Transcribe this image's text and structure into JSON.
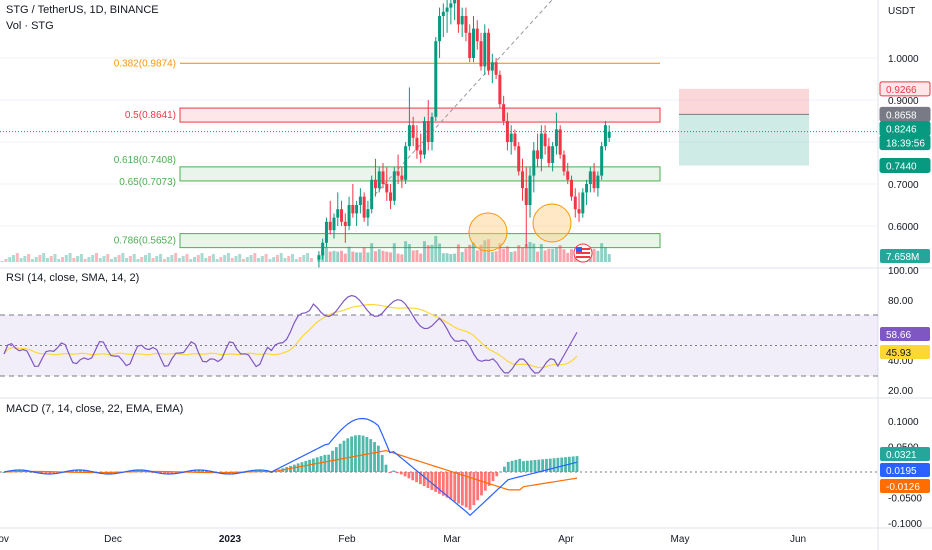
{
  "header": {
    "symbol": "STG / TetherUS, 1D, BINANCE",
    "vol_label": "Vol · STG"
  },
  "price_axis": {
    "currency": "USDT",
    "ticks": [
      "1.0000",
      "0.9000",
      "0.8000",
      "0.7000",
      "0.6000"
    ],
    "tick_values": [
      1.0,
      0.9,
      0.8,
      0.7,
      0.6
    ],
    "badges": [
      {
        "text": "0.9266",
        "color": "#f23645",
        "text_color": "#f23645",
        "fill": "#fde7e9",
        "value": 0.9266
      },
      {
        "text": "0.8658",
        "color": "#787b86",
        "text_color": "#ffffff",
        "fill": "#787b86",
        "value": 0.8658
      },
      {
        "text": "0.8246",
        "color": "#089981",
        "text_color": "#ffffff",
        "fill": "#089981",
        "value": 0.8246
      },
      {
        "text": "18:39:56",
        "color": "#089981",
        "text_color": "#ffffff",
        "fill": "#089981",
        "value": 0.8246
      },
      {
        "text": "0.7440",
        "color": "#089981",
        "text_color": "#ffffff",
        "fill": "#089981",
        "value": 0.744
      }
    ],
    "volume_badge": "7.658M"
  },
  "fib_levels": [
    {
      "label": "0.382(0.9874)",
      "ratio": 0.382,
      "price": 0.9874,
      "color": "#ff9800"
    },
    {
      "label": "0.5(0.8641)",
      "ratio": 0.5,
      "price": 0.8641,
      "color": "#f23645"
    },
    {
      "label": "0.618(0.7408)",
      "ratio": 0.618,
      "price": 0.7408,
      "color": "#4caf50"
    },
    {
      "label": "0.65(0.7073)",
      "ratio": 0.65,
      "price": 0.7073,
      "color": "#4caf50"
    },
    {
      "label": "0.786(0.5652)",
      "ratio": 0.786,
      "price": 0.5652,
      "color": "#4caf50"
    }
  ],
  "position_tool": {
    "stop": 0.9266,
    "entry": 0.8658,
    "target": 0.744
  },
  "rsi_pane": {
    "title": "RSI (14, close, SMA, 14, 2)",
    "ticks": [
      "100.00",
      "80.00",
      "60.00",
      "40.00",
      "20.00"
    ],
    "tick_values": [
      100,
      80,
      60,
      40,
      20
    ],
    "rsi_value": "58.66",
    "sma_value": "45.93",
    "rsi_color": "#7e57c2",
    "sma_color": "#fdd835"
  },
  "macd_pane": {
    "title": "MACD (7, 14, close, 22, EMA, EMA)",
    "ticks": [
      "0.1000",
      "0.0500",
      "0",
      "-0.0500",
      "-0.1000"
    ],
    "tick_values": [
      0.1,
      0.05,
      0,
      -0.05,
      -0.1
    ],
    "hist_value": "0.0321",
    "macd_value": "0.0195",
    "signal_value": "-0.0126",
    "hist_color": "#26a69a",
    "macd_color": "#2962ff",
    "signal_color": "#ff6d00"
  },
  "time_axis": [
    "Nov",
    "Dec",
    "2023",
    "Feb",
    "Mar",
    "Apr",
    "May",
    "Jun"
  ],
  "chart_data": {
    "type": "candlestick",
    "title": "STG / TetherUS, 1D, BINANCE",
    "ylabel": "USDT",
    "ylim": [
      0.52,
      1.1
    ],
    "x_start": "2022-10-27",
    "candles": [
      {
        "d": "2023-01-18",
        "o": 0.52,
        "h": 0.54,
        "l": 0.5,
        "c": 0.53
      },
      {
        "d": "2023-01-19",
        "o": 0.53,
        "h": 0.57,
        "l": 0.52,
        "c": 0.56
      },
      {
        "d": "2023-01-20",
        "o": 0.56,
        "h": 0.62,
        "l": 0.55,
        "c": 0.61
      },
      {
        "d": "2023-01-21",
        "o": 0.61,
        "h": 0.66,
        "l": 0.58,
        "c": 0.59
      },
      {
        "d": "2023-01-22",
        "o": 0.59,
        "h": 0.63,
        "l": 0.57,
        "c": 0.62
      },
      {
        "d": "2023-01-23",
        "o": 0.62,
        "h": 0.68,
        "l": 0.6,
        "c": 0.64
      },
      {
        "d": "2023-01-24",
        "o": 0.64,
        "h": 0.66,
        "l": 0.6,
        "c": 0.61
      },
      {
        "d": "2023-01-25",
        "o": 0.61,
        "h": 0.63,
        "l": 0.56,
        "c": 0.6
      },
      {
        "d": "2023-01-26",
        "o": 0.6,
        "h": 0.67,
        "l": 0.59,
        "c": 0.65
      },
      {
        "d": "2023-01-27",
        "o": 0.65,
        "h": 0.7,
        "l": 0.62,
        "c": 0.63
      },
      {
        "d": "2023-01-28",
        "o": 0.63,
        "h": 0.66,
        "l": 0.6,
        "c": 0.65
      },
      {
        "d": "2023-01-29",
        "o": 0.65,
        "h": 0.69,
        "l": 0.63,
        "c": 0.67
      },
      {
        "d": "2023-01-30",
        "o": 0.67,
        "h": 0.68,
        "l": 0.61,
        "c": 0.62
      },
      {
        "d": "2023-01-31",
        "o": 0.62,
        "h": 0.66,
        "l": 0.6,
        "c": 0.64
      },
      {
        "d": "2023-02-01",
        "o": 0.64,
        "h": 0.72,
        "l": 0.63,
        "c": 0.71
      },
      {
        "d": "2023-02-02",
        "o": 0.71,
        "h": 0.76,
        "l": 0.67,
        "c": 0.69
      },
      {
        "d": "2023-02-03",
        "o": 0.69,
        "h": 0.74,
        "l": 0.68,
        "c": 0.73
      },
      {
        "d": "2023-02-04",
        "o": 0.73,
        "h": 0.75,
        "l": 0.69,
        "c": 0.7
      },
      {
        "d": "2023-02-05",
        "o": 0.7,
        "h": 0.74,
        "l": 0.66,
        "c": 0.68
      },
      {
        "d": "2023-02-06",
        "o": 0.68,
        "h": 0.7,
        "l": 0.64,
        "c": 0.66
      },
      {
        "d": "2023-02-07",
        "o": 0.66,
        "h": 0.74,
        "l": 0.65,
        "c": 0.73
      },
      {
        "d": "2023-02-08",
        "o": 0.73,
        "h": 0.77,
        "l": 0.7,
        "c": 0.72
      },
      {
        "d": "2023-02-09",
        "o": 0.72,
        "h": 0.74,
        "l": 0.69,
        "c": 0.71
      },
      {
        "d": "2023-02-10",
        "o": 0.71,
        "h": 0.8,
        "l": 0.7,
        "c": 0.79
      },
      {
        "d": "2023-02-11",
        "o": 0.79,
        "h": 0.93,
        "l": 0.78,
        "c": 0.84
      },
      {
        "d": "2023-02-12",
        "o": 0.84,
        "h": 0.86,
        "l": 0.79,
        "c": 0.81
      },
      {
        "d": "2023-02-13",
        "o": 0.81,
        "h": 0.84,
        "l": 0.76,
        "c": 0.78
      },
      {
        "d": "2023-02-14",
        "o": 0.78,
        "h": 0.82,
        "l": 0.75,
        "c": 0.77
      },
      {
        "d": "2023-02-15",
        "o": 0.77,
        "h": 0.86,
        "l": 0.76,
        "c": 0.85
      },
      {
        "d": "2023-02-16",
        "o": 0.85,
        "h": 0.9,
        "l": 0.78,
        "c": 0.8
      },
      {
        "d": "2023-02-17",
        "o": 0.8,
        "h": 0.87,
        "l": 0.78,
        "c": 0.86
      },
      {
        "d": "2023-02-18",
        "o": 0.86,
        "h": 1.05,
        "l": 0.85,
        "c": 1.04
      },
      {
        "d": "2023-02-19",
        "o": 1.04,
        "h": 1.12,
        "l": 1.0,
        "c": 1.1
      },
      {
        "d": "2023-02-20",
        "o": 1.1,
        "h": 1.13,
        "l": 1.05,
        "c": 1.11
      },
      {
        "d": "2023-02-21",
        "o": 1.11,
        "h": 1.14,
        "l": 1.06,
        "c": 1.12
      },
      {
        "d": "2023-02-22",
        "o": 1.12,
        "h": 1.14,
        "l": 1.08,
        "c": 1.13
      },
      {
        "d": "2023-02-23",
        "o": 1.13,
        "h": 1.16,
        "l": 1.09,
        "c": 1.14
      },
      {
        "d": "2023-02-24",
        "o": 1.14,
        "h": 1.16,
        "l": 1.06,
        "c": 1.08
      },
      {
        "d": "2023-02-25",
        "o": 1.08,
        "h": 1.12,
        "l": 1.05,
        "c": 1.1
      },
      {
        "d": "2023-02-26",
        "o": 1.1,
        "h": 1.12,
        "l": 1.04,
        "c": 1.06
      },
      {
        "d": "2023-02-27",
        "o": 1.06,
        "h": 1.08,
        "l": 0.99,
        "c": 1.0
      },
      {
        "d": "2023-02-28",
        "o": 1.0,
        "h": 1.1,
        "l": 0.99,
        "c": 1.07
      },
      {
        "d": "2023-03-01",
        "o": 1.07,
        "h": 1.09,
        "l": 1.02,
        "c": 1.04
      },
      {
        "d": "2023-03-02",
        "o": 1.04,
        "h": 1.06,
        "l": 0.97,
        "c": 0.98
      },
      {
        "d": "2023-03-03",
        "o": 0.98,
        "h": 1.08,
        "l": 0.96,
        "c": 1.06
      },
      {
        "d": "2023-03-04",
        "o": 1.06,
        "h": 1.07,
        "l": 0.96,
        "c": 0.97
      },
      {
        "d": "2023-03-05",
        "o": 0.97,
        "h": 1.01,
        "l": 0.94,
        "c": 0.99
      },
      {
        "d": "2023-03-06",
        "o": 0.99,
        "h": 1.0,
        "l": 0.95,
        "c": 0.96
      },
      {
        "d": "2023-03-07",
        "o": 0.96,
        "h": 0.97,
        "l": 0.88,
        "c": 0.89
      },
      {
        "d": "2023-03-08",
        "o": 0.89,
        "h": 0.91,
        "l": 0.84,
        "c": 0.85
      },
      {
        "d": "2023-03-09",
        "o": 0.85,
        "h": 0.87,
        "l": 0.78,
        "c": 0.8
      },
      {
        "d": "2023-03-10",
        "o": 0.8,
        "h": 0.84,
        "l": 0.77,
        "c": 0.82
      },
      {
        "d": "2023-03-11",
        "o": 0.82,
        "h": 0.83,
        "l": 0.78,
        "c": 0.79
      },
      {
        "d": "2023-03-12",
        "o": 0.79,
        "h": 0.8,
        "l": 0.72,
        "c": 0.73
      },
      {
        "d": "2023-03-13",
        "o": 0.73,
        "h": 0.76,
        "l": 0.66,
        "c": 0.69
      },
      {
        "d": "2023-03-14",
        "o": 0.69,
        "h": 0.74,
        "l": 0.55,
        "c": 0.65
      },
      {
        "d": "2023-03-15",
        "o": 0.65,
        "h": 0.74,
        "l": 0.62,
        "c": 0.72
      },
      {
        "d": "2023-03-16",
        "o": 0.72,
        "h": 0.8,
        "l": 0.68,
        "c": 0.78
      },
      {
        "d": "2023-03-17",
        "o": 0.78,
        "h": 0.82,
        "l": 0.74,
        "c": 0.76
      },
      {
        "d": "2023-03-18",
        "o": 0.76,
        "h": 0.84,
        "l": 0.73,
        "c": 0.82
      },
      {
        "d": "2023-03-19",
        "o": 0.82,
        "h": 0.84,
        "l": 0.77,
        "c": 0.79
      },
      {
        "d": "2023-03-20",
        "o": 0.79,
        "h": 0.81,
        "l": 0.74,
        "c": 0.75
      },
      {
        "d": "2023-03-21",
        "o": 0.75,
        "h": 0.8,
        "l": 0.73,
        "c": 0.79
      },
      {
        "d": "2023-03-22",
        "o": 0.79,
        "h": 0.87,
        "l": 0.77,
        "c": 0.83
      },
      {
        "d": "2023-03-23",
        "o": 0.83,
        "h": 0.84,
        "l": 0.76,
        "c": 0.77
      },
      {
        "d": "2023-03-24",
        "o": 0.77,
        "h": 0.78,
        "l": 0.72,
        "c": 0.73
      },
      {
        "d": "2023-03-25",
        "o": 0.73,
        "h": 0.75,
        "l": 0.7,
        "c": 0.71
      },
      {
        "d": "2023-03-26",
        "o": 0.71,
        "h": 0.72,
        "l": 0.66,
        "c": 0.67
      },
      {
        "d": "2023-03-27",
        "o": 0.67,
        "h": 0.69,
        "l": 0.62,
        "c": 0.64
      },
      {
        "d": "2023-03-28",
        "o": 0.64,
        "h": 0.68,
        "l": 0.61,
        "c": 0.63
      },
      {
        "d": "2023-03-29",
        "o": 0.63,
        "h": 0.69,
        "l": 0.62,
        "c": 0.68
      },
      {
        "d": "2023-03-30",
        "o": 0.68,
        "h": 0.71,
        "l": 0.65,
        "c": 0.7
      },
      {
        "d": "2023-03-31",
        "o": 0.7,
        "h": 0.74,
        "l": 0.68,
        "c": 0.73
      },
      {
        "d": "2023-04-01",
        "o": 0.73,
        "h": 0.75,
        "l": 0.68,
        "c": 0.69
      },
      {
        "d": "2023-04-02",
        "o": 0.69,
        "h": 0.73,
        "l": 0.67,
        "c": 0.72
      },
      {
        "d": "2023-04-03",
        "o": 0.72,
        "h": 0.8,
        "l": 0.71,
        "c": 0.79
      },
      {
        "d": "2023-04-04",
        "o": 0.79,
        "h": 0.85,
        "l": 0.78,
        "c": 0.84
      },
      {
        "d": "2023-04-05",
        "o": 0.81,
        "h": 0.84,
        "l": 0.8,
        "c": 0.8246
      }
    ]
  }
}
